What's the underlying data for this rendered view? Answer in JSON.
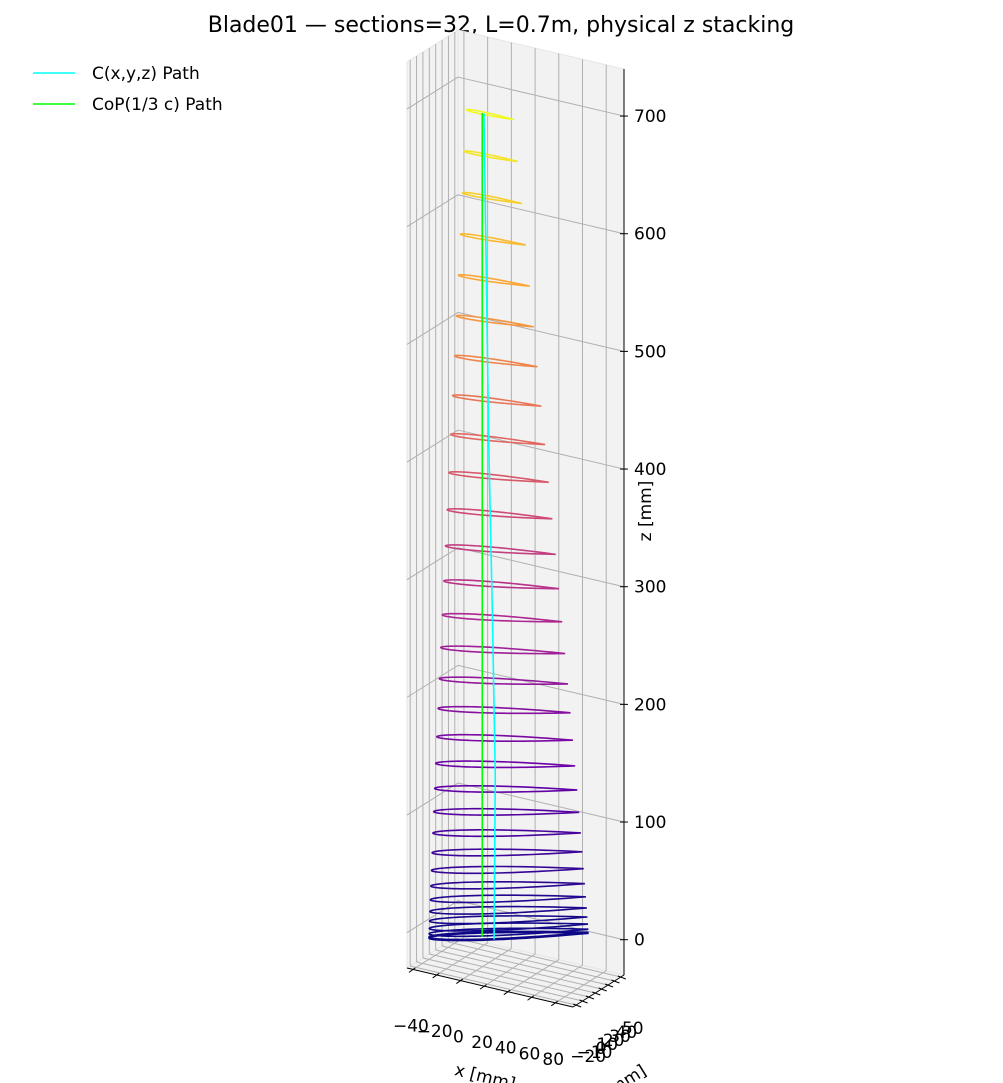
{
  "chart_data": {
    "type": "blade3d",
    "title": "Blade01 — sections=32, L=0.7m, physical z stacking",
    "xlabel": "x [mm]",
    "ylabel": "y [mm]",
    "zlabel": "z [mm]",
    "xlim": [
      -45,
      95
    ],
    "ylim": [
      -25,
      55
    ],
    "zlim": [
      -30,
      740
    ],
    "xticks": [
      {
        "value": -40,
        "label": "−40"
      },
      {
        "value": -20,
        "label": "−20"
      },
      0,
      20,
      40,
      60,
      80
    ],
    "yticks": [
      {
        "value": -20,
        "label": "−20"
      },
      {
        "value": -10,
        "label": "−10"
      },
      0,
      10,
      20,
      30,
      40,
      50
    ],
    "zticks": [
      0,
      100,
      200,
      300,
      400,
      500,
      600,
      700
    ],
    "grid": true,
    "legend": "upper-left",
    "cmap": [
      "#0d0887",
      "#6a00a8",
      "#b12a90",
      "#e16462",
      "#fca636",
      "#f0f921"
    ],
    "sections": {
      "z": [
        0,
        0.9,
        3.6,
        8.1,
        14.3,
        22.3,
        32.1,
        43.6,
        56.7,
        71.5,
        88.0,
        106.0,
        125.5,
        146.5,
        168.9,
        192.7,
        217.7,
        244.0,
        271.5,
        300.1,
        329.7,
        360.3,
        391.7,
        424.0,
        456.9,
        490.5,
        524.5,
        559.1,
        594.0,
        629.2,
        664.6,
        700
      ],
      "chord": [
        121.0,
        120.9,
        120.6,
        120.1,
        119.3,
        118.4,
        117.2,
        115.9,
        114.4,
        112.6,
        110.7,
        108.6,
        106.3,
        103.8,
        101.2,
        98.4,
        95.5,
        92.4,
        89.2,
        85.8,
        82.4,
        78.8,
        75.1,
        71.3,
        67.5,
        63.5,
        59.6,
        55.5,
        51.4,
        47.3,
        43.1,
        39.0
      ],
      "twist": [
        39.7,
        39.7,
        39.5,
        39.3,
        39.0,
        38.5,
        38.0,
        37.4,
        36.8,
        36.0,
        35.1,
        34.2,
        33.2,
        32.1,
        30.9,
        29.7,
        28.4,
        27.1,
        25.6,
        24.1,
        22.6,
        21.0,
        19.4,
        17.7,
        16.0,
        14.3,
        12.5,
        10.7,
        8.9,
        7.1,
        5.2,
        3.4
      ]
    },
    "series": [
      {
        "name": "C(x,y,z) Path",
        "color": "#00ffff",
        "x": [
          15,
          16,
          13.5,
          10.5,
          8.5,
          6.5
        ],
        "y": [
          0,
          0,
          0,
          0,
          0,
          0
        ],
        "z": [
          0,
          140,
          280,
          420,
          560,
          700
        ]
      },
      {
        "name": "CoP(1/3 c) Path",
        "color": "#00ff00",
        "x": [
          5,
          5
        ],
        "y": [
          0,
          0
        ],
        "z": [
          0,
          700
        ]
      }
    ]
  }
}
